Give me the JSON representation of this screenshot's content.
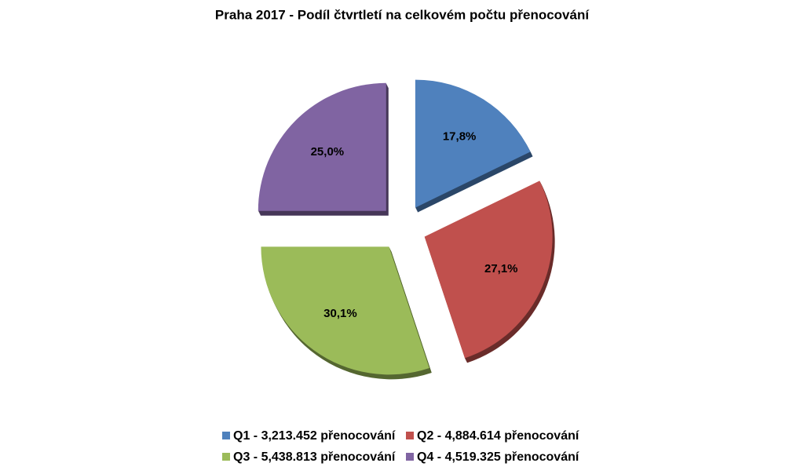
{
  "chart_data": {
    "type": "pie",
    "title": "Praha 2017 - Podíl čtvrtletí na celkovém počtu přenocování",
    "categories": [
      "Q1 - 3,213.452 přenocování",
      "Q2 - 4,884.614 přenocování",
      "Q3 - 5,438.813 přenocování",
      "Q4 - 4,519.325 přenocování"
    ],
    "values": [
      17.8,
      27.1,
      30.1,
      25.0
    ],
    "value_labels": [
      "17,8%",
      "27,1%",
      "30,1%",
      "25,0%"
    ],
    "colors": [
      "#4f81bd",
      "#c0504d",
      "#9bbb59",
      "#8064a2"
    ],
    "legend": "bottom"
  }
}
